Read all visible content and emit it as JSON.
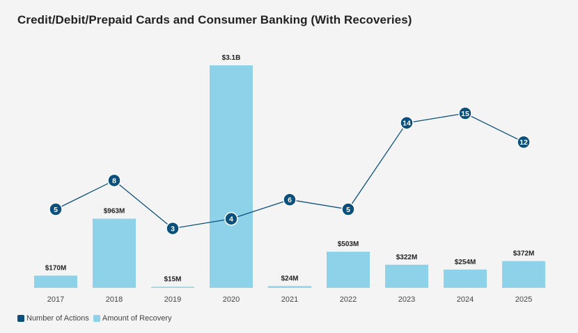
{
  "chart_data": {
    "type": "bar",
    "title": "Credit/Debit/Prepaid Cards and Consumer Banking (With Recoveries)",
    "categories": [
      "2017",
      "2018",
      "2019",
      "2020",
      "2021",
      "2022",
      "2023",
      "2024",
      "2025"
    ],
    "series": [
      {
        "name": "Amount of Recovery",
        "type": "bar",
        "color": "#8ed2ea",
        "values": [
          170,
          963,
          15,
          3100,
          24,
          503,
          322,
          254,
          372
        ],
        "labels": [
          "$170M",
          "$963M",
          "$15M",
          "$3.1B",
          "$24M",
          "$503M",
          "$322M",
          "$254M",
          "$372M"
        ]
      },
      {
        "name": "Number of Actions",
        "type": "line",
        "color": "#0b4f7c",
        "values": [
          5,
          8,
          3,
          4,
          6,
          5,
          14,
          15,
          12
        ]
      }
    ],
    "xlabel": "",
    "ylabel": "",
    "legend_position": "bottom-left",
    "grid": false
  }
}
